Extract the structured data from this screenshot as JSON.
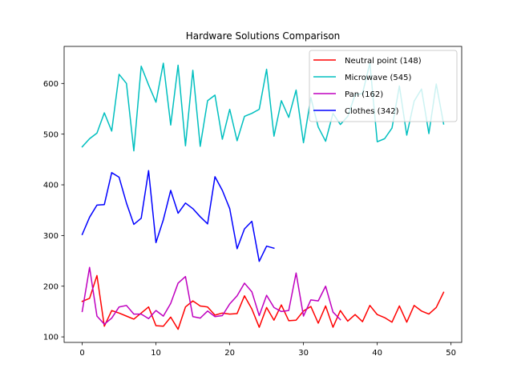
{
  "chart_data": {
    "type": "line",
    "title": "Hardware Solutions Comparison",
    "xlabel": "",
    "ylabel": "",
    "xlim": [
      -2.45,
      51.45
    ],
    "ylim": [
      89.1,
      673.1
    ],
    "xticks": [
      0,
      10,
      20,
      30,
      40,
      50
    ],
    "yticks": [
      100,
      200,
      300,
      400,
      500,
      600
    ],
    "grid": false,
    "legend_position": "top-right",
    "series": [
      {
        "name": "Neutral point (148)",
        "color": "#ff0000",
        "x": [
          0,
          1,
          2,
          3,
          4,
          5,
          6,
          7,
          8,
          9,
          10,
          11,
          12,
          13,
          14,
          15,
          16,
          17,
          18,
          19,
          20,
          21,
          22,
          23,
          24,
          25,
          26,
          27,
          28,
          29,
          30,
          31,
          32,
          33,
          34,
          35,
          36,
          37,
          38,
          39,
          40,
          41,
          42,
          43,
          44,
          45,
          46,
          47,
          48,
          49
        ],
        "values": [
          170,
          176,
          221,
          121,
          152,
          147,
          141,
          135,
          147,
          159,
          122,
          121,
          139,
          115,
          159,
          171,
          161,
          159,
          143,
          147,
          145,
          146,
          181,
          155,
          119,
          158,
          133,
          163,
          132,
          133,
          151,
          160,
          127,
          161,
          119,
          152,
          131,
          144,
          130,
          162,
          144,
          138,
          129,
          161,
          129,
          162,
          151,
          145,
          158,
          188
        ]
      },
      {
        "name": "Microwave (545)",
        "color": "#00bfbf",
        "x": [
          0,
          1,
          2,
          3,
          4,
          5,
          6,
          7,
          8,
          9,
          10,
          11,
          12,
          13,
          14,
          15,
          16,
          17,
          18,
          19,
          20,
          21,
          22,
          23,
          24,
          25,
          26,
          27,
          28,
          29,
          30,
          31,
          32,
          33,
          34,
          35,
          36,
          37,
          38,
          39,
          40,
          41,
          42,
          43,
          44,
          45,
          46,
          47,
          48,
          49
        ],
        "values": [
          475,
          491,
          502,
          542,
          506,
          618,
          600,
          467,
          634,
          597,
          563,
          640,
          518,
          636,
          477,
          626,
          476,
          566,
          577,
          490,
          549,
          487,
          535,
          541,
          549,
          628,
          496,
          566,
          533,
          587,
          483,
          572,
          514,
          486,
          541,
          519,
          535,
          578,
          580,
          640,
          485,
          491,
          512,
          595,
          498,
          565,
          589,
          501,
          599,
          520
        ]
      },
      {
        "name": "Pan (162)",
        "color": "#bf00bf",
        "x": [
          0,
          1,
          2,
          3,
          4,
          5,
          6,
          7,
          8,
          9,
          10,
          11,
          12,
          13,
          14,
          15,
          16,
          17,
          18,
          19,
          20,
          21,
          22,
          23,
          24,
          25,
          26,
          27,
          28,
          29,
          30,
          31,
          32,
          33,
          34,
          35
        ],
        "values": [
          150,
          237,
          141,
          125,
          137,
          159,
          162,
          145,
          145,
          136,
          152,
          141,
          166,
          206,
          219,
          140,
          137,
          151,
          140,
          142,
          165,
          181,
          206,
          189,
          142,
          182,
          158,
          150,
          152,
          226,
          141,
          173,
          171,
          200,
          149,
          134
        ]
      },
      {
        "name": "Clothes (342)",
        "color": "#0000ff",
        "x": [
          0,
          1,
          2,
          3,
          4,
          5,
          6,
          7,
          8,
          9,
          10,
          11,
          12,
          13,
          14,
          15,
          16,
          17,
          18,
          19,
          20,
          21,
          22,
          23,
          24,
          25,
          26
        ],
        "values": [
          302,
          336,
          360,
          361,
          424,
          415,
          364,
          322,
          334,
          428,
          286,
          331,
          389,
          344,
          364,
          353,
          337,
          323,
          416,
          389,
          353,
          274,
          313,
          328,
          249,
          279,
          275
        ]
      }
    ]
  }
}
